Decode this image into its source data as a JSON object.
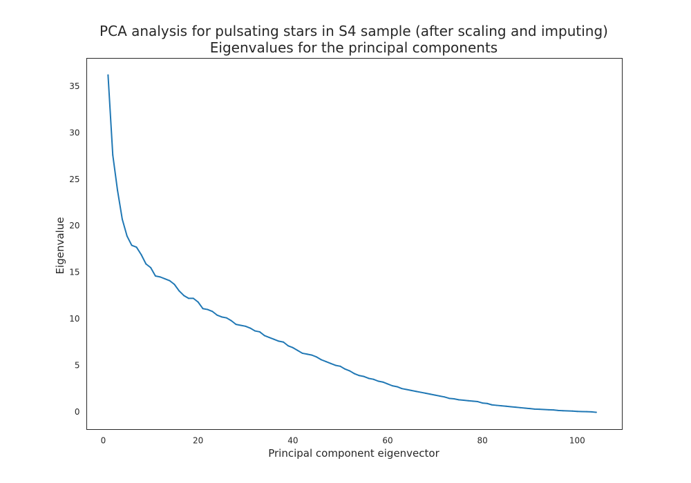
{
  "chart_data": {
    "type": "line",
    "title": "PCA analysis for pulsating stars in S4 sample (after scaling and imputing)",
    "subtitle": "Eigenvalues for the principal components",
    "xlabel": "Principal component eigenvector",
    "ylabel": "Eigenvalue",
    "xlim": [
      -3.5,
      109.5
    ],
    "ylim": [
      -1.9,
      38.0
    ],
    "xticks": [
      0,
      20,
      40,
      60,
      80,
      100
    ],
    "yticks": [
      0,
      5,
      10,
      15,
      20,
      25,
      30,
      35
    ],
    "grid": false,
    "line_color": "#1f77b4",
    "series": [
      {
        "x": [
          1,
          2,
          3,
          4,
          5,
          6,
          7,
          8,
          9,
          10,
          11,
          12,
          13,
          14,
          15,
          16,
          17,
          18,
          19,
          20,
          21,
          22,
          23,
          24,
          25,
          26,
          27,
          28,
          29,
          30,
          31,
          32,
          33,
          34,
          35,
          36,
          37,
          38,
          39,
          40,
          41,
          42,
          43,
          44,
          45,
          46,
          47,
          48,
          49,
          50,
          51,
          52,
          53,
          54,
          55,
          56,
          57,
          58,
          59,
          60,
          61,
          62,
          63,
          64,
          65,
          66,
          67,
          68,
          69,
          70,
          71,
          72,
          73,
          74,
          75,
          76,
          77,
          78,
          79,
          80,
          81,
          82,
          83,
          84,
          85,
          86,
          87,
          88,
          89,
          90,
          91,
          92,
          93,
          94,
          95,
          96,
          97,
          98,
          99,
          100,
          101,
          102,
          103,
          104
        ],
        "values": [
          36.2,
          27.6,
          23.8,
          20.7,
          18.9,
          17.9,
          17.7,
          16.9,
          15.9,
          15.5,
          14.6,
          14.5,
          14.3,
          14.1,
          13.7,
          13.0,
          12.5,
          12.2,
          12.2,
          11.8,
          11.1,
          11.0,
          10.8,
          10.4,
          10.2,
          10.1,
          9.8,
          9.4,
          9.3,
          9.2,
          9.0,
          8.7,
          8.6,
          8.2,
          8.0,
          7.8,
          7.6,
          7.5,
          7.1,
          6.9,
          6.6,
          6.3,
          6.2,
          6.1,
          5.9,
          5.6,
          5.4,
          5.2,
          5.0,
          4.9,
          4.6,
          4.4,
          4.1,
          3.9,
          3.8,
          3.6,
          3.5,
          3.3,
          3.2,
          3.0,
          2.8,
          2.7,
          2.5,
          2.4,
          2.3,
          2.2,
          2.1,
          2.0,
          1.9,
          1.8,
          1.7,
          1.6,
          1.45,
          1.4,
          1.3,
          1.25,
          1.2,
          1.15,
          1.1,
          0.95,
          0.9,
          0.75,
          0.7,
          0.65,
          0.6,
          0.55,
          0.5,
          0.45,
          0.4,
          0.35,
          0.3,
          0.28,
          0.25,
          0.22,
          0.2,
          0.15,
          0.12,
          0.1,
          0.08,
          0.05,
          0.03,
          0.02,
          0.0,
          -0.05
        ]
      }
    ]
  }
}
